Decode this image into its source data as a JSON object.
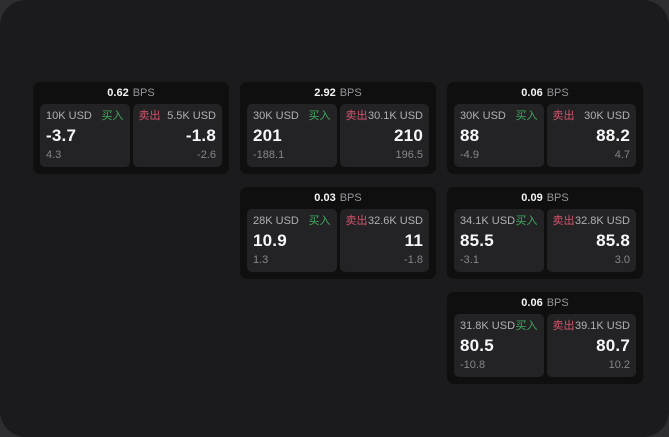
{
  "labels": {
    "bps_unit": "BPS",
    "buy": "买入",
    "sell": "卖出"
  },
  "colors": {
    "backdrop": "#2e2e30",
    "window_background": "#1b1b1d",
    "card_background": "#0f0f10",
    "panel_background": "#232326",
    "buy_green": "#41a95f",
    "sell_red": "#d5536a",
    "primary_text": "#f7f7f8",
    "secondary_text": "#b0b0b2",
    "dim_text": "#86868a"
  },
  "cards": [
    {
      "bps": "0.62",
      "buy": {
        "amount": "10K USD",
        "price": "-3.7",
        "delta": "4.3"
      },
      "sell": {
        "amount": "5.5K USD",
        "price": "-1.8",
        "delta": "-2.6"
      }
    },
    {
      "bps": "2.92",
      "buy": {
        "amount": "30K USD",
        "price": "201",
        "delta": "-188.1"
      },
      "sell": {
        "amount": "30.1K USD",
        "price": "210",
        "delta": "196.5"
      }
    },
    {
      "bps": "0.06",
      "buy": {
        "amount": "30K USD",
        "price": "88",
        "delta": "-4.9"
      },
      "sell": {
        "amount": "30K USD",
        "price": "88.2",
        "delta": "4.7"
      }
    },
    {
      "bps": "0.03",
      "buy": {
        "amount": "28K USD",
        "price": "10.9",
        "delta": "1.3"
      },
      "sell": {
        "amount": "32.6K USD",
        "price": "11",
        "delta": "-1.8"
      }
    },
    {
      "bps": "0.09",
      "buy": {
        "amount": "34.1K USD",
        "price": "85.5",
        "delta": "-3.1"
      },
      "sell": {
        "amount": "32.8K USD",
        "price": "85.8",
        "delta": "3.0"
      }
    },
    {
      "bps": "0.06",
      "buy": {
        "amount": "31.8K USD",
        "price": "80.5",
        "delta": "-10.8"
      },
      "sell": {
        "amount": "39.1K USD",
        "price": "80.7",
        "delta": "10.2"
      }
    }
  ]
}
